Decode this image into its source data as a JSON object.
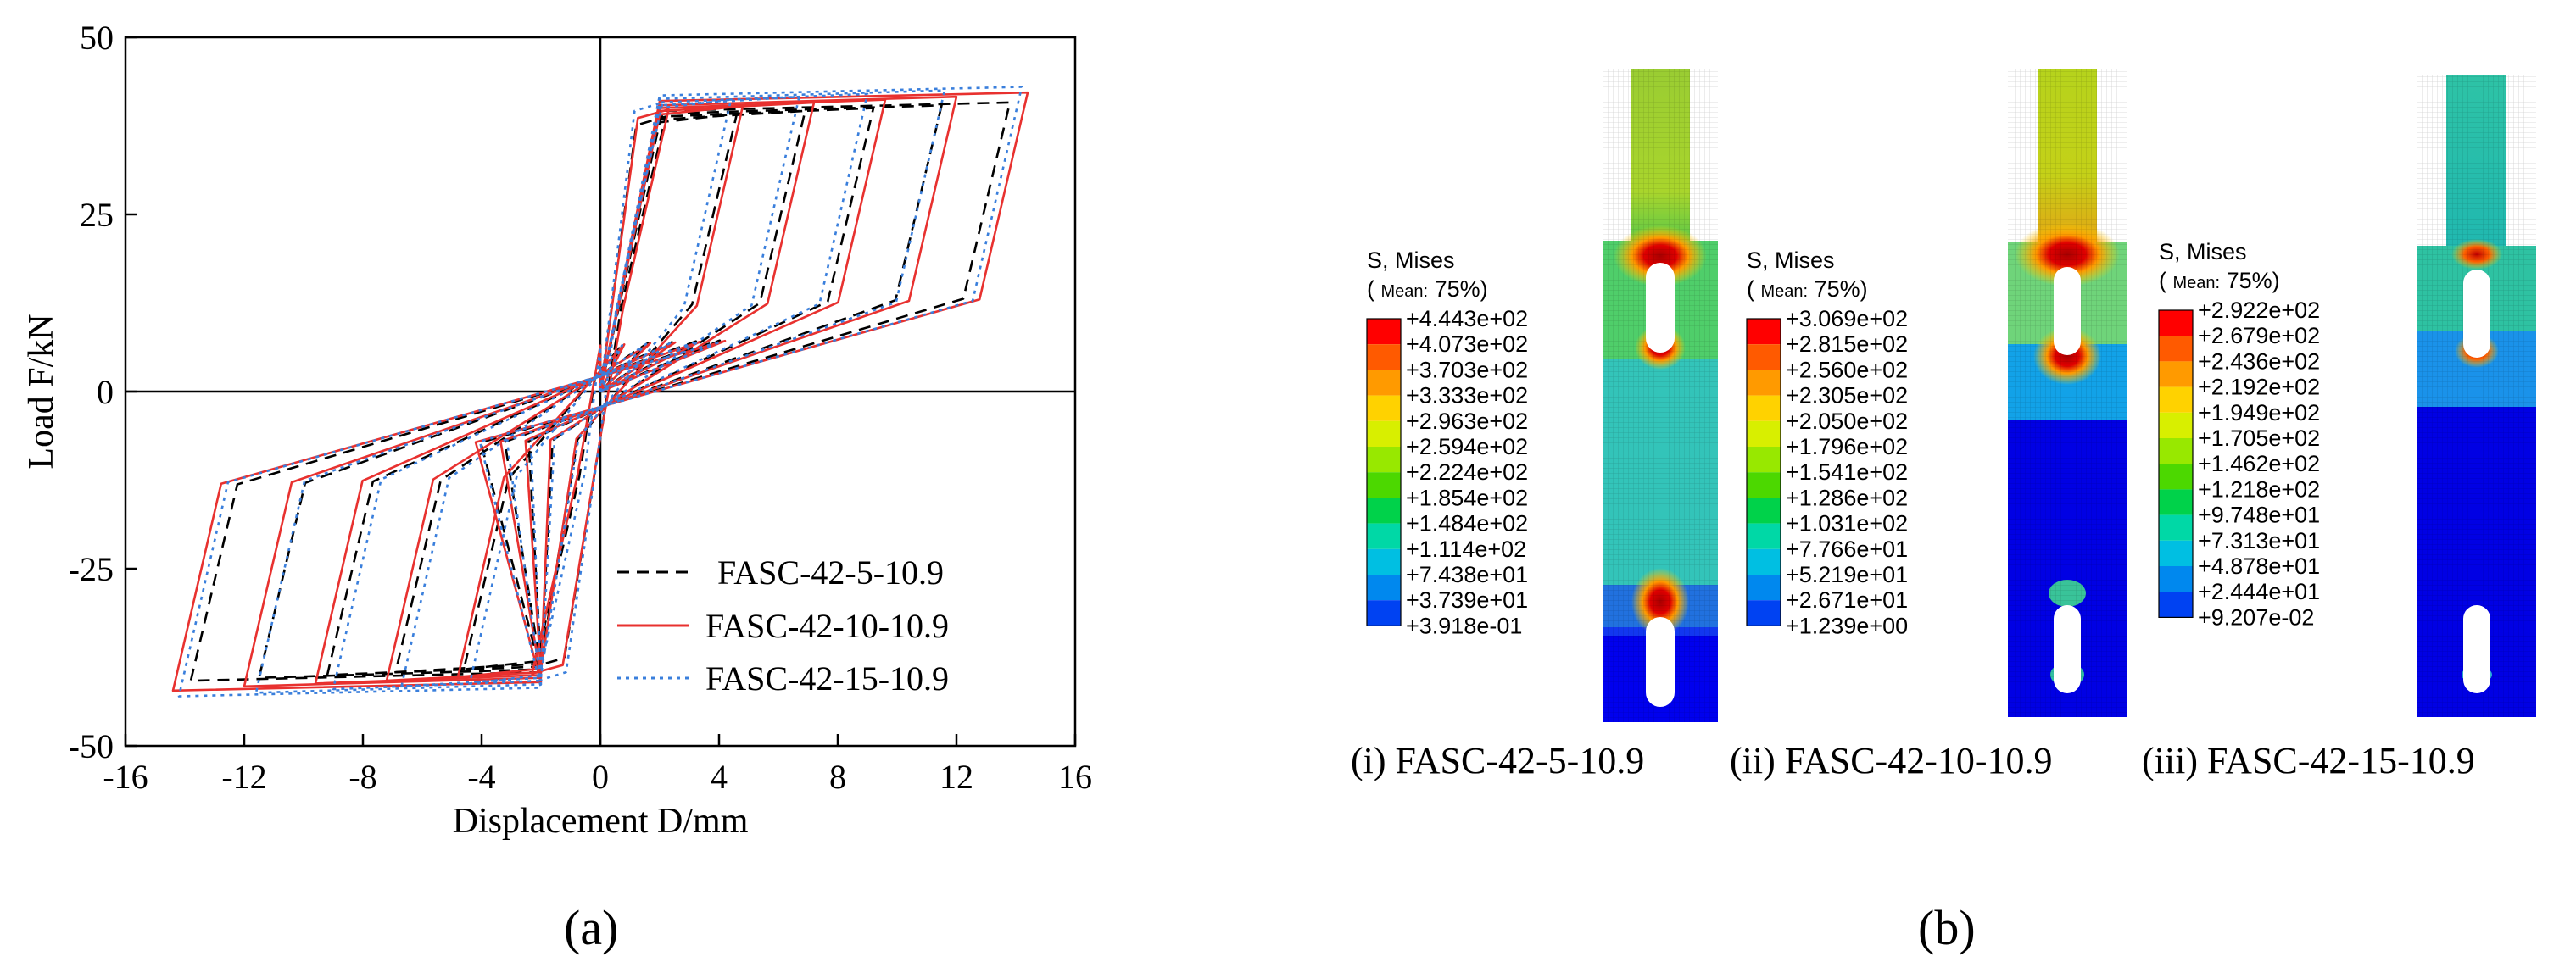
{
  "chart_data": [
    {
      "type": "line",
      "panel_label": "(a)",
      "xlabel": "Displacement D/mm",
      "ylabel": "Load F/kN",
      "xlim": [
        -16,
        16
      ],
      "ylim": [
        -50,
        50
      ],
      "x_ticks": [
        -16,
        -12,
        -8,
        -4,
        0,
        4,
        8,
        12,
        16
      ],
      "y_ticks": [
        -50,
        -25,
        0,
        25,
        50
      ],
      "x_tick_labels": [
        "-16",
        "-12",
        "-8",
        "-4",
        "0",
        "4",
        "8",
        "12",
        "16"
      ],
      "y_tick_labels": [
        "-50",
        "-25",
        "0",
        "25",
        "50"
      ],
      "grid": false,
      "legend_position": "bottom-right",
      "series": [
        {
          "name": "FASC-42-5-10.9",
          "color": "#000000",
          "style": "dashed",
          "cycles": [
            {
              "d": 2.2,
              "fmax": 38.8,
              "funl": 12.0
            },
            {
              "d": 4.6,
              "fmax": 39.2,
              "funl": 12.3
            },
            {
              "d": 6.9,
              "fmax": 39.6,
              "funl": 12.5
            },
            {
              "d": 9.2,
              "fmax": 40.0,
              "funl": 12.7
            },
            {
              "d": 11.5,
              "fmax": 40.4,
              "funl": 12.9
            },
            {
              "d": 13.8,
              "fmax": 40.8,
              "funl": 13.1
            }
          ]
        },
        {
          "name": "FASC-42-10-10.9",
          "color": "#e8312f",
          "style": "solid",
          "cycles": [
            {
              "d": 2.3,
              "fmax": 39.8,
              "funl": 11.8
            },
            {
              "d": 4.8,
              "fmax": 40.3,
              "funl": 12.1
            },
            {
              "d": 7.2,
              "fmax": 40.8,
              "funl": 12.4
            },
            {
              "d": 9.6,
              "fmax": 41.2,
              "funl": 12.6
            },
            {
              "d": 12.0,
              "fmax": 41.6,
              "funl": 12.8
            },
            {
              "d": 14.4,
              "fmax": 42.2,
              "funl": 13.0
            }
          ]
        },
        {
          "name": "FASC-42-15-10.9",
          "color": "#3a7fdc",
          "style": "dotted",
          "cycles": [
            {
              "d": 2.1,
              "fmax": 40.8,
              "funl": 11.6
            },
            {
              "d": 4.4,
              "fmax": 41.2,
              "funl": 11.9
            },
            {
              "d": 6.7,
              "fmax": 41.6,
              "funl": 12.2
            },
            {
              "d": 9.0,
              "fmax": 42.0,
              "funl": 12.4
            },
            {
              "d": 11.6,
              "fmax": 42.5,
              "funl": 12.6
            },
            {
              "d": 14.2,
              "fmax": 43.0,
              "funl": 12.8
            }
          ]
        }
      ]
    },
    {
      "type": "heatmap",
      "panel_label": "(b)",
      "contour_plots": [
        {
          "caption": "(i) FASC-42-5-10.9",
          "legend_title": "S, Mises",
          "legend_mean_prefix": "(",
          "legend_mean_label": "Mean:",
          "legend_mean_value": "75%)",
          "levels": [
            "+4.443e+02",
            "+4.073e+02",
            "+3.703e+02",
            "+3.333e+02",
            "+2.963e+02",
            "+2.594e+02",
            "+2.224e+02",
            "+1.854e+02",
            "+1.484e+02",
            "+1.114e+02",
            "+7.438e+01",
            "+3.739e+01",
            "+3.918e-01"
          ]
        },
        {
          "caption": "(ii) FASC-42-10-10.9",
          "legend_title": "S, Mises",
          "legend_mean_prefix": "(",
          "legend_mean_label": "Mean:",
          "legend_mean_value": "75%)",
          "levels": [
            "+3.069e+02",
            "+2.815e+02",
            "+2.560e+02",
            "+2.305e+02",
            "+2.050e+02",
            "+1.796e+02",
            "+1.541e+02",
            "+1.286e+02",
            "+1.031e+02",
            "+7.766e+01",
            "+5.219e+01",
            "+2.671e+01",
            "+1.239e+00"
          ]
        },
        {
          "caption": "(iii) FASC-42-15-10.9",
          "legend_title": "S, Mises",
          "legend_mean_prefix": "(",
          "legend_mean_label": "Mean:",
          "legend_mean_value": "75%)",
          "levels": [
            "+2.922e+02",
            "+2.679e+02",
            "+2.436e+02",
            "+2.192e+02",
            "+1.949e+02",
            "+1.705e+02",
            "+1.462e+02",
            "+1.218e+02",
            "+9.748e+01",
            "+7.313e+01",
            "+4.878e+01",
            "+2.444e+01",
            "+9.207e-02"
          ]
        }
      ]
    }
  ],
  "color_scale": [
    "#ff0000",
    "#ff5a00",
    "#ff9a00",
    "#ffd200",
    "#d8ef00",
    "#98e800",
    "#4cd800",
    "#00d24a",
    "#00d8a6",
    "#00bfe2",
    "#0088ee",
    "#0042f2",
    "#0000ff"
  ]
}
